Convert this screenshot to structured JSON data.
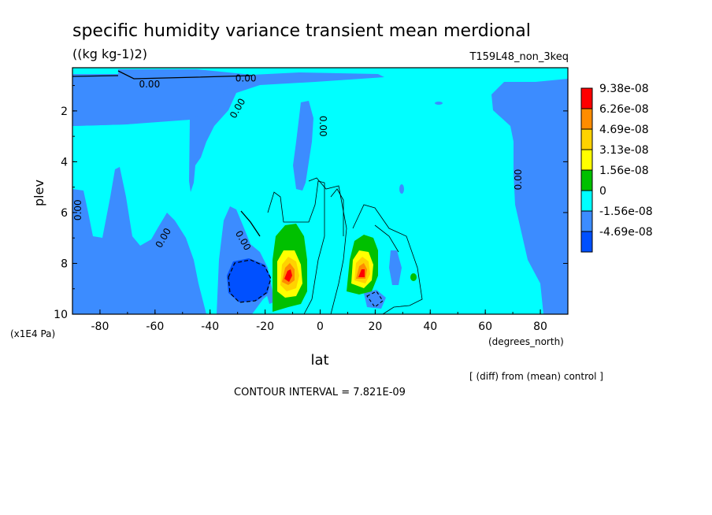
{
  "chart_data": {
    "type": "heatmap",
    "title": "specific humidity variance transient mean merdional",
    "units": "((kg kg-1)2)",
    "run_label": "T159L48_non_3keq",
    "xlabel": "lat",
    "x_unit": "(degrees_north)",
    "ylabel": "plev",
    "y_unit": "(x1E4 Pa)",
    "footnote": "[ (diff) from (mean) control ]",
    "contour_interval": "CONTOUR INTERVAL = 7.821E-09",
    "xlim": [
      -90,
      90
    ],
    "ylim": [
      10,
      0.3
    ],
    "x_ticks": [
      "-80",
      "-60",
      "-40",
      "-20",
      "0",
      "20",
      "40",
      "60",
      "80"
    ],
    "x_tick_values": [
      -80,
      -60,
      -40,
      -20,
      0,
      20,
      40,
      60,
      80
    ],
    "y_ticks": [
      "2",
      "4",
      "6",
      "8",
      "10"
    ],
    "y_tick_values": [
      2,
      4,
      6,
      8,
      10
    ],
    "contour_labels": [
      "0.00"
    ],
    "colorbar": {
      "labels": [
        "9.38e-08",
        "6.26e-08",
        "4.69e-08",
        "3.13e-08",
        "1.56e-08",
        "0",
        "-1.56e-08",
        "-4.69e-08"
      ],
      "colors": [
        "#ff0000",
        "#ff8c00",
        "#ffd200",
        "#ffff00",
        "#00c000",
        "#00ffff",
        "#3c8cff",
        "#0050ff"
      ]
    },
    "regions": [
      {
        "sign": "positive",
        "lat_center": -12,
        "plev_center": 8.3,
        "peak": "9.38e-08"
      },
      {
        "sign": "positive",
        "lat_center": 15,
        "plev_center": 8.2,
        "peak": "9.38e-08"
      },
      {
        "sign": "negative",
        "lat_center": -27,
        "plev_center": 8.4,
        "peak": "-4.69e-08"
      },
      {
        "sign": "negative",
        "lat_center": 20,
        "plev_center": 9.2,
        "peak": "-4.69e-08"
      }
    ]
  },
  "colors": {
    "background": "#00ffff",
    "negative_shade": "#3c8cff",
    "strong_negative": "#0050ff"
  }
}
